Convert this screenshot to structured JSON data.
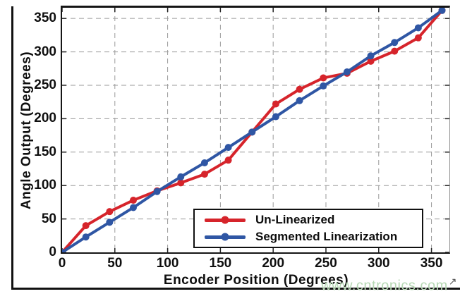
{
  "watermark": {
    "text": "www.cntronics.com",
    "color": "#b6d8b4"
  },
  "chart_data": {
    "type": "line",
    "title": "",
    "xlabel": "Encoder Position (Degrees)",
    "ylabel": "Angle Output (Degrees)",
    "xlim": [
      0,
      367
    ],
    "ylim": [
      0,
      366
    ],
    "xticks": [
      0,
      50,
      100,
      150,
      200,
      250,
      300,
      350
    ],
    "yticks": [
      0,
      50,
      100,
      150,
      200,
      250,
      300,
      350
    ],
    "grid": true,
    "grid_color": "#9a9a9a",
    "tick_color": "#222222",
    "legend_position": "lower right",
    "x": [
      0,
      22.5,
      45,
      67.5,
      90,
      112.5,
      135,
      157.5,
      180,
      202.5,
      225,
      247.5,
      270,
      292.5,
      315,
      337.5,
      360
    ],
    "series": [
      {
        "name": "Un-Linearized",
        "color": "#d6242b",
        "values": [
          0,
          40,
          61,
          78,
          92,
          104,
          117,
          138,
          180,
          222,
          244,
          261,
          268,
          286,
          301,
          321,
          362
        ]
      },
      {
        "name": "Segmented Linearization",
        "color": "#2f56a4",
        "values": [
          0,
          23,
          45,
          67,
          91,
          113,
          134,
          157,
          180,
          203,
          227,
          249,
          270,
          294,
          314,
          336,
          362
        ]
      }
    ]
  }
}
